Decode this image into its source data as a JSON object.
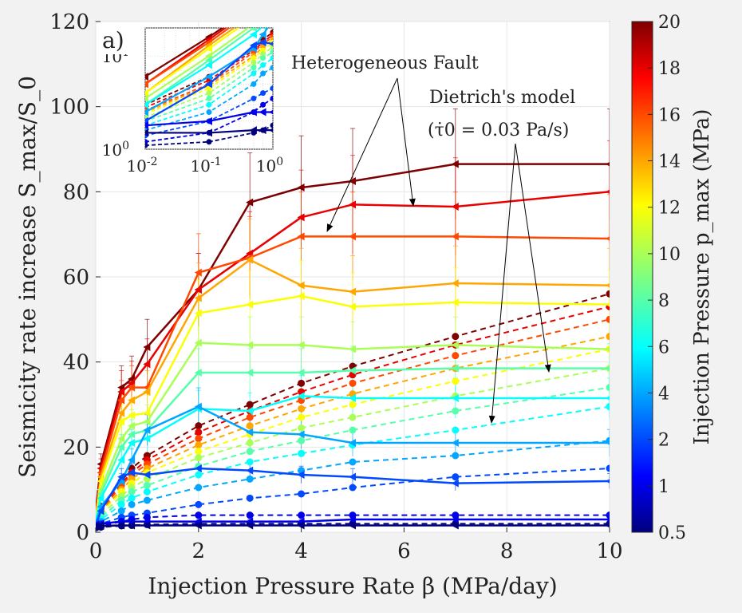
{
  "chart_data": {
    "type": "line",
    "panel_label": "a)",
    "xlabel": "Injection Pressure Rate β (MPa/day)",
    "ylabel": "Seismicity rate increase S_max/S_0",
    "xlim": [
      0,
      10
    ],
    "ylim": [
      0,
      120
    ],
    "xticks": [
      "0",
      "2",
      "4",
      "6",
      "8",
      "10"
    ],
    "yticks": [
      "0",
      "20",
      "40",
      "60",
      "80",
      "100",
      "120"
    ],
    "grid": true,
    "annotations": [
      {
        "text": "Heterogeneous Fault"
      },
      {
        "text": "Dietrich's model"
      },
      {
        "text": "(τ̇0 = 0.03 Pa/s)"
      }
    ],
    "x": [
      0.01,
      0.1,
      0.5,
      0.7,
      1,
      2,
      3,
      4,
      5,
      7,
      10
    ],
    "heterogeneous_series": [
      {
        "pmax": 20,
        "values": [
          6,
          16,
          34,
          36,
          43.5,
          57,
          77.5,
          81,
          82.5,
          86.5,
          86.5
        ]
      },
      {
        "pmax": 18,
        "values": [
          5,
          15,
          33,
          35,
          39.5,
          57,
          65.5,
          74,
          77,
          76.5,
          80
        ]
      },
      {
        "pmax": 16,
        "values": [
          5,
          14,
          31,
          34,
          34,
          61,
          64.5,
          69.5,
          69.5,
          69.5,
          69
        ]
      },
      {
        "pmax": 14,
        "values": [
          4,
          13,
          28,
          31,
          33,
          55,
          64,
          58,
          56.5,
          58.5,
          58
        ]
      },
      {
        "pmax": 12,
        "values": [
          4,
          12,
          26,
          27.5,
          28,
          51.5,
          53.5,
          55.5,
          53,
          54,
          53.5
        ]
      },
      {
        "pmax": 10,
        "values": [
          3.5,
          10,
          22,
          25,
          26,
          44.5,
          44,
          44,
          43,
          44,
          43
        ]
      },
      {
        "pmax": 8,
        "values": [
          3,
          9,
          20,
          23,
          24,
          37.5,
          37.5,
          37.5,
          38,
          38.5,
          38.5
        ]
      },
      {
        "pmax": 6,
        "values": [
          3,
          8,
          17,
          21,
          22,
          29,
          28.5,
          32,
          31.5,
          31.5,
          31.5
        ]
      },
      {
        "pmax": 4,
        "values": [
          2.5,
          6,
          12,
          17,
          24,
          29.5,
          23.5,
          23,
          21,
          21,
          21
        ]
      },
      {
        "pmax": 2,
        "values": [
          2,
          5,
          13,
          14,
          13.5,
          15,
          14.5,
          13.5,
          13,
          11.5,
          12
        ]
      },
      {
        "pmax": 1,
        "values": [
          1.8,
          2,
          2.5,
          2.5,
          2.5,
          2.5,
          2.5,
          2.5,
          3,
          3,
          3
        ]
      },
      {
        "pmax": 0.5,
        "values": [
          1.5,
          1.5,
          1.6,
          1.6,
          1.6,
          1.6,
          1.6,
          1.6,
          1.6,
          1.6,
          1.6
        ]
      }
    ],
    "dietrich_series": [
      {
        "pmax": 20,
        "values": [
          3,
          6,
          12,
          15,
          18,
          25,
          30,
          35,
          39,
          46,
          56
        ]
      },
      {
        "pmax": 18,
        "values": [
          2.8,
          5.5,
          11.5,
          14,
          17,
          23.5,
          28.5,
          33,
          37,
          44,
          53
        ]
      },
      {
        "pmax": 16,
        "values": [
          2.6,
          5,
          11,
          13.5,
          16,
          22,
          27,
          31,
          35,
          41.5,
          50
        ]
      },
      {
        "pmax": 14,
        "values": [
          2.5,
          4.8,
          10,
          12.5,
          15,
          20.5,
          25,
          29,
          32.5,
          38.5,
          46
        ]
      },
      {
        "pmax": 12,
        "values": [
          2.4,
          4.5,
          9.5,
          11.5,
          14,
          19,
          23,
          27,
          30,
          35.5,
          43
        ]
      },
      {
        "pmax": 10,
        "values": [
          2.2,
          4,
          8.5,
          10.5,
          12.5,
          17.5,
          21,
          24.5,
          27,
          32,
          38.5
        ]
      },
      {
        "pmax": 8,
        "values": [
          2,
          3.5,
          7.5,
          9.5,
          11,
          15.5,
          19,
          21.5,
          24,
          28.5,
          34
        ]
      },
      {
        "pmax": 6,
        "values": [
          1.8,
          3,
          6.5,
          8,
          9.5,
          13.5,
          16.5,
          18.5,
          20.5,
          24,
          29.5
        ]
      },
      {
        "pmax": 4,
        "values": [
          1.6,
          2.5,
          5,
          6.5,
          7.5,
          10.5,
          12.5,
          14.5,
          16.5,
          18,
          21.5
        ]
      },
      {
        "pmax": 2,
        "values": [
          1.4,
          2,
          3.5,
          4,
          4.5,
          6.5,
          8,
          9,
          10.5,
          13,
          15
        ]
      },
      {
        "pmax": 1,
        "values": [
          1.2,
          1.5,
          2.5,
          3,
          3.5,
          4,
          4,
          4,
          4,
          4,
          4
        ]
      },
      {
        "pmax": 0.5,
        "values": [
          1.1,
          1.2,
          1.5,
          1.6,
          1.8,
          2,
          2,
          2,
          2,
          2,
          2
        ]
      }
    ],
    "inset": {
      "xticks": [
        "10-2",
        "10-1",
        "100"
      ],
      "yticks": [
        "100",
        "101"
      ],
      "xscale": "log",
      "yscale": "log",
      "xlim": [
        0.01,
        1
      ],
      "ylim": [
        1,
        20
      ]
    },
    "colorbar": {
      "label": "Injection Pressure p_max (MPa)",
      "ticks": [
        "0.5",
        "1",
        "2",
        "4",
        "6",
        "8",
        "10",
        "12",
        "14",
        "16",
        "18",
        "20"
      ],
      "colormap": "jet"
    }
  }
}
